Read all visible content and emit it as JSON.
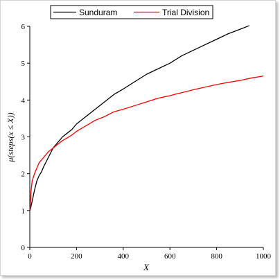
{
  "chart_data": {
    "type": "line",
    "xlabel": "X",
    "ylabel": "μ(steps(x ≤ X))",
    "xlim": [
      0,
      1000
    ],
    "ylim": [
      0,
      6
    ],
    "x_ticks": [
      0,
      200,
      400,
      600,
      800,
      1000
    ],
    "y_ticks": [
      0,
      1,
      2,
      3,
      4,
      5,
      6
    ],
    "x_tick_labels": [
      "0",
      "200",
      "400",
      "600",
      "800",
      "1000"
    ],
    "y_tick_labels": [
      "0",
      "1",
      "2",
      "3",
      "4",
      "5",
      "6"
    ],
    "grid": false,
    "legend_position": "top",
    "series": [
      {
        "name": "Sunduram",
        "color": "#000000",
        "x": [
          1,
          10,
          20,
          30,
          40,
          50,
          60,
          80,
          100,
          120,
          140,
          160,
          180,
          200,
          240,
          280,
          320,
          360,
          400,
          450,
          500,
          550,
          600,
          650,
          700,
          750,
          800,
          850,
          900,
          940
        ],
        "y": [
          1.0,
          1.25,
          1.55,
          1.8,
          1.95,
          2.05,
          2.2,
          2.45,
          2.7,
          2.85,
          3.0,
          3.1,
          3.2,
          3.35,
          3.55,
          3.75,
          3.95,
          4.15,
          4.3,
          4.5,
          4.7,
          4.85,
          5.0,
          5.2,
          5.35,
          5.5,
          5.65,
          5.8,
          5.92,
          6.02
        ]
      },
      {
        "name": "Trial Division",
        "color": "#ff0000",
        "x": [
          1,
          5,
          10,
          20,
          30,
          40,
          60,
          80,
          100,
          120,
          140,
          160,
          180,
          200,
          240,
          280,
          320,
          360,
          400,
          450,
          500,
          550,
          600,
          650,
          700,
          750,
          800,
          850,
          900,
          950,
          1000
        ],
        "y": [
          1.0,
          1.5,
          1.8,
          2.0,
          2.15,
          2.3,
          2.45,
          2.6,
          2.7,
          2.8,
          2.9,
          2.97,
          3.05,
          3.15,
          3.3,
          3.45,
          3.55,
          3.68,
          3.75,
          3.85,
          3.95,
          4.05,
          4.12,
          4.2,
          4.28,
          4.35,
          4.42,
          4.48,
          4.53,
          4.6,
          4.65
        ]
      }
    ]
  }
}
